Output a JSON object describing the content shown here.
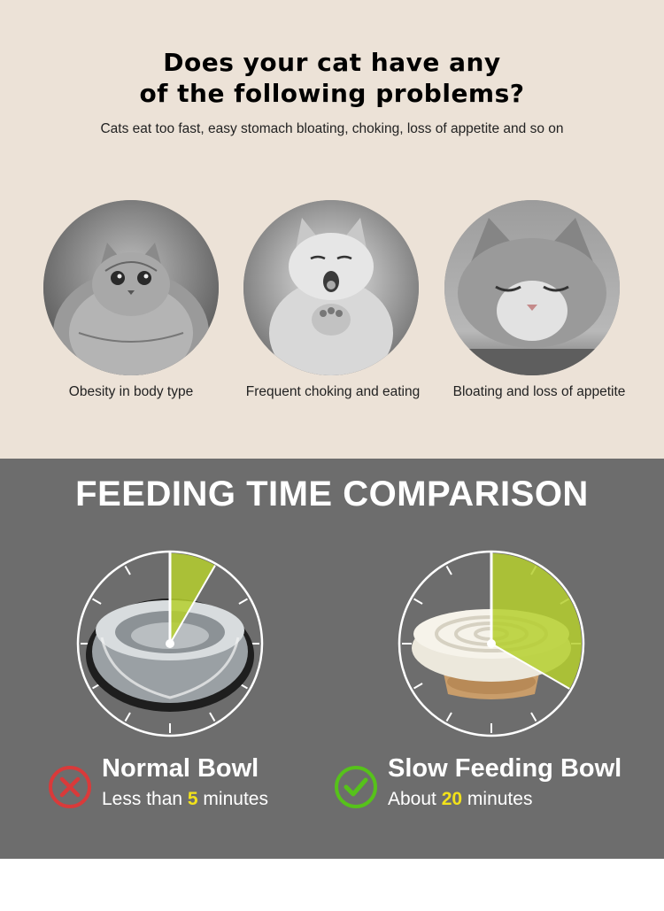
{
  "intro": {
    "title_line1": "Does your cat have any",
    "title_line2": "of the following problems?",
    "subtitle": "Cats eat too fast, easy stomach bloating, choking, loss of appetite and so on"
  },
  "problems": [
    {
      "caption": "Obesity in body type",
      "image": "fat-cat-photo"
    },
    {
      "caption": "Frequent choking and eating",
      "image": "choking-cat-photo"
    },
    {
      "caption": "Bloating and loss of appetite",
      "image": "sleepy-cat-photo"
    }
  ],
  "comparison": {
    "heading": "FEEDING TIME COMPARISON",
    "normal": {
      "name": "Normal Bowl",
      "time_prefix": "Less than ",
      "time_value": "5",
      "time_suffix": " minutes",
      "minutes": 5,
      "icon": "x-mark-icon"
    },
    "slow": {
      "name": "Slow Feeding Bowl",
      "time_prefix": "About ",
      "time_value": "20",
      "time_suffix": " minutes",
      "minutes": 20,
      "icon": "check-mark-icon"
    }
  },
  "colors": {
    "top_background": "#ece2d7",
    "bottom_background": "#6d6d6d",
    "highlight_yellow": "#f2e21a",
    "sector_green": "#b5cf2e",
    "bad_red": "#d93a3a",
    "good_green": "#56c21a"
  }
}
